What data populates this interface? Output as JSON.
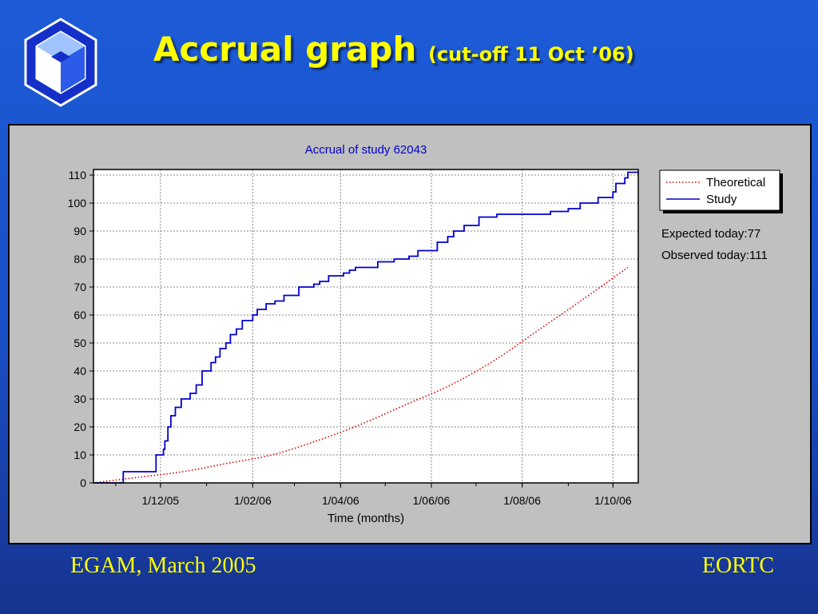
{
  "slide": {
    "title_main": "Accrual graph",
    "title_sub": "(cut-off 11 Oct ’06)",
    "footer_left": "EGAM, March 2005",
    "footer_right": "EORTC",
    "logo_icon": "eortc-logo-icon",
    "title_color": "#ffff00"
  },
  "stats": {
    "expected": "Expected today:77",
    "observed": "Observed today:111"
  },
  "chart_data": {
    "type": "line",
    "title": "Accrual of study 62043",
    "xlabel": "Time (months)",
    "ylabel": "",
    "xlim": [
      "2005-10-17",
      "2006-10-18"
    ],
    "ylim": [
      0,
      112
    ],
    "y_ticks": [
      0,
      10,
      20,
      30,
      40,
      50,
      60,
      70,
      80,
      90,
      100,
      110
    ],
    "x_ticks": [
      {
        "date": "2005-12-01",
        "label": "1/12/05"
      },
      {
        "date": "2006-02-01",
        "label": "1/02/06"
      },
      {
        "date": "2006-04-01",
        "label": "1/04/06"
      },
      {
        "date": "2006-06-01",
        "label": "1/06/06"
      },
      {
        "date": "2006-08-01",
        "label": "1/08/06"
      },
      {
        "date": "2006-10-01",
        "label": "1/10/06"
      }
    ],
    "grid": true,
    "legend_position": "top-right",
    "series": [
      {
        "name": "Theoretical",
        "style": "dotted",
        "color": "#dd0000",
        "x": [
          "2005-10-17",
          "2005-11-16",
          "2005-12-16",
          "2006-01-15",
          "2006-02-14",
          "2006-03-16",
          "2006-04-15",
          "2006-05-15",
          "2006-06-14",
          "2006-07-14",
          "2006-08-13",
          "2006-09-12",
          "2006-10-11"
        ],
        "y": [
          0,
          2,
          4,
          7,
          10,
          15,
          21,
          28,
          35,
          44,
          55,
          66,
          77
        ]
      },
      {
        "name": "Study",
        "style": "step",
        "color": "#0000cc",
        "x": [
          "2005-10-17",
          "2005-11-05",
          "2005-11-06",
          "2005-11-26",
          "2005-11-28",
          "2005-12-03",
          "2005-12-04",
          "2005-12-06",
          "2005-12-08",
          "2005-12-11",
          "2005-12-15",
          "2005-12-21",
          "2005-12-25",
          "2005-12-29",
          "2006-01-04",
          "2006-01-07",
          "2006-01-10",
          "2006-01-14",
          "2006-01-17",
          "2006-01-21",
          "2006-01-25",
          "2006-02-01",
          "2006-02-04",
          "2006-02-10",
          "2006-02-16",
          "2006-02-22",
          "2006-03-04",
          "2006-03-14",
          "2006-03-18",
          "2006-03-24",
          "2006-04-03",
          "2006-04-07",
          "2006-04-11",
          "2006-04-26",
          "2006-05-07",
          "2006-05-17",
          "2006-05-23",
          "2006-06-05",
          "2006-06-12",
          "2006-06-16",
          "2006-06-23",
          "2006-07-03",
          "2006-07-15",
          "2006-08-01",
          "2006-08-20",
          "2006-09-01",
          "2006-09-09",
          "2006-09-21",
          "2006-10-01",
          "2006-10-03",
          "2006-10-09",
          "2006-10-11",
          "2006-10-18"
        ],
        "y": [
          0,
          0,
          4,
          4,
          10,
          12,
          15,
          20,
          24,
          27,
          30,
          32,
          35,
          40,
          43,
          45,
          48,
          50,
          53,
          55,
          58,
          60,
          62,
          64,
          65,
          67,
          70,
          71,
          72,
          74,
          75,
          76,
          77,
          79,
          80,
          81,
          83,
          86,
          88,
          90,
          92,
          95,
          96,
          96,
          97,
          98,
          100,
          102,
          104,
          107,
          109,
          111,
          111
        ]
      }
    ]
  }
}
